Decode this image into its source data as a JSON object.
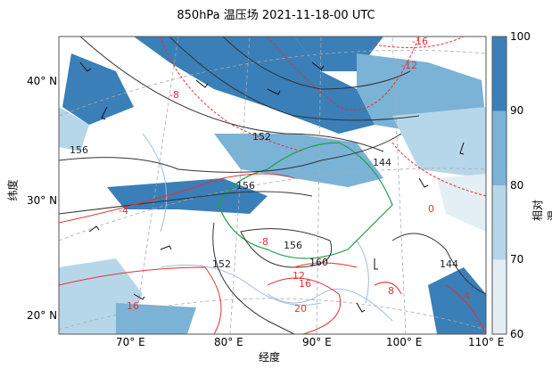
{
  "title": "850hPa 温压场 2021-11-18-00 UTC",
  "axes": {
    "xlabel": "经度",
    "ylabel": "纬度",
    "lon_ticks": [
      "70° E",
      "80° E",
      "90° E",
      "100° E",
      "110° E"
    ],
    "lat_ticks": [
      "40° N",
      "30° N",
      "20° N"
    ]
  },
  "colorbar": {
    "label": "相对湿度/%",
    "ticks": [
      "100",
      "90",
      "80",
      "70",
      "60"
    ],
    "colors": [
      "#3a7fb8",
      "#7ab3d6",
      "#b6d7ea",
      "#e4eef5"
    ]
  },
  "geopotential_labels": [
    "152",
    "156",
    "144",
    "156",
    "156",
    "160",
    "152",
    "144"
  ],
  "temperature_labels": [
    "-16",
    "-12",
    "-8",
    "-4",
    "0",
    "-8",
    "12",
    "16",
    "20",
    "8",
    "16",
    "4"
  ],
  "colors": {
    "geopotential": "#333333",
    "temperature": "#e83030",
    "plateau_boundary": "#22a045",
    "rivers": "#9fbde0",
    "grid": "#aaaaaa"
  }
}
